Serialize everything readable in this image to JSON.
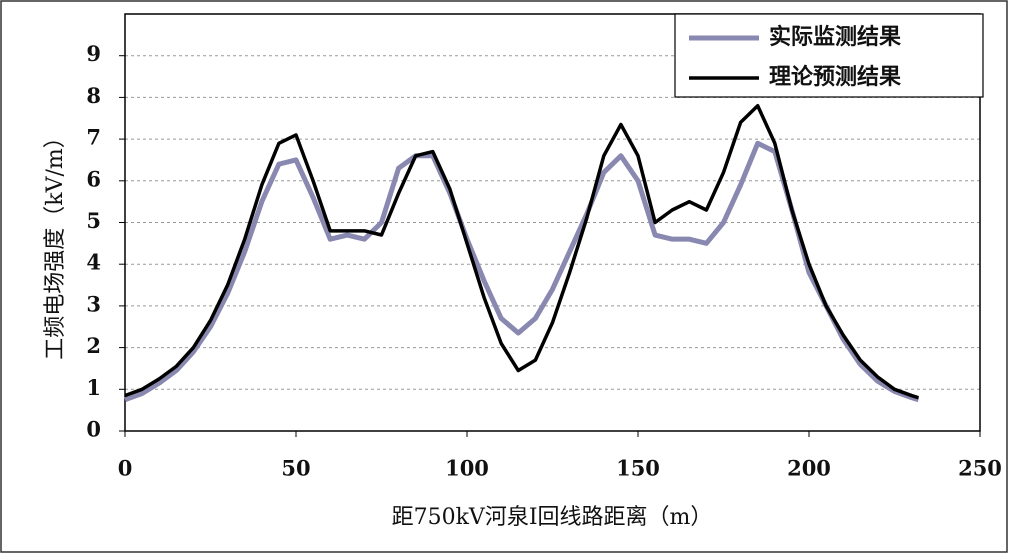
{
  "chart_data": {
    "type": "line",
    "y_label": "工频电场强度（kV/m）",
    "x_label": "距750kV河泉I回线路距离（m）",
    "x": [
      0,
      5,
      10,
      15,
      20,
      25,
      30,
      35,
      40,
      45,
      50,
      55,
      60,
      65,
      70,
      75,
      80,
      85,
      90,
      95,
      100,
      105,
      110,
      115,
      120,
      125,
      130,
      135,
      140,
      145,
      150,
      155,
      160,
      165,
      170,
      175,
      180,
      185,
      190,
      195,
      200,
      205,
      210,
      215,
      220,
      225,
      230,
      232
    ],
    "series": [
      {
        "name": "实际监测结果",
        "color": "#8888b0",
        "width": 5,
        "values": [
          0.75,
          0.9,
          1.15,
          1.45,
          1.9,
          2.5,
          3.3,
          4.3,
          5.5,
          6.4,
          6.5,
          5.6,
          4.6,
          4.7,
          4.6,
          5.0,
          6.3,
          6.6,
          6.6,
          5.7,
          4.6,
          3.6,
          2.7,
          2.35,
          2.7,
          3.4,
          4.3,
          5.2,
          6.2,
          6.6,
          6.0,
          4.7,
          4.6,
          4.6,
          4.5,
          5.0,
          5.9,
          6.9,
          6.7,
          5.3,
          3.8,
          3.0,
          2.2,
          1.6,
          1.2,
          0.95,
          0.8,
          0.75
        ]
      },
      {
        "name": "理论预测结果",
        "color": "#000000",
        "width": 3.5,
        "values": [
          0.85,
          1.0,
          1.25,
          1.55,
          2.0,
          2.65,
          3.5,
          4.6,
          5.9,
          6.9,
          7.1,
          6.0,
          4.8,
          4.8,
          4.8,
          4.7,
          5.7,
          6.6,
          6.7,
          5.8,
          4.5,
          3.2,
          2.1,
          1.45,
          1.7,
          2.6,
          3.8,
          5.1,
          6.6,
          7.35,
          6.6,
          5.0,
          5.3,
          5.5,
          5.3,
          6.2,
          7.4,
          7.8,
          6.9,
          5.3,
          4.0,
          3.0,
          2.3,
          1.7,
          1.3,
          1.0,
          0.85,
          0.8
        ]
      }
    ],
    "xlim": [
      0,
      250
    ],
    "xticks": [
      0,
      50,
      100,
      150,
      200,
      250
    ],
    "ylim": [
      0,
      10
    ],
    "yticks": [
      0,
      1,
      2,
      3,
      4,
      5,
      6,
      7,
      8,
      9
    ],
    "grid": true,
    "legend": "upper-right"
  }
}
